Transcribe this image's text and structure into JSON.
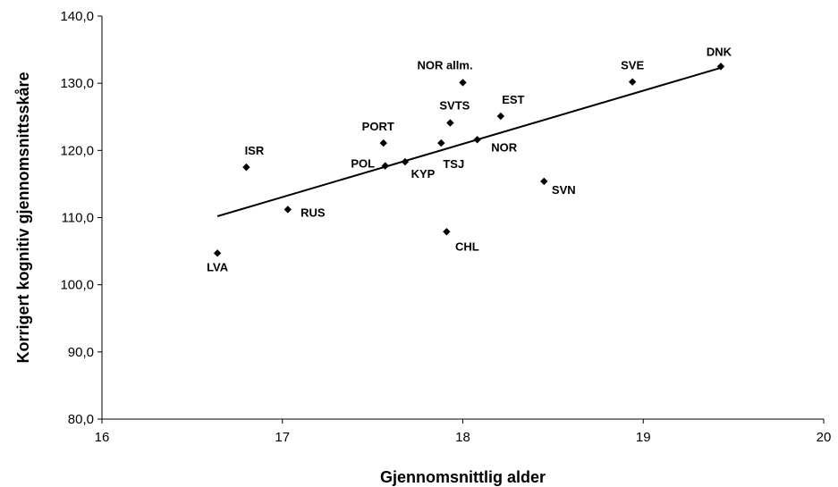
{
  "chart_data": {
    "type": "scatter",
    "title": "",
    "xlabel": "Gjennomsnittlig alder",
    "ylabel": "Korrigert kognitiv gjennomsnittsskåre",
    "xlim": [
      16,
      20
    ],
    "ylim": [
      80,
      140
    ],
    "x_ticks": [
      "16",
      "17",
      "18",
      "19",
      "20"
    ],
    "y_ticks": [
      "80,0",
      "90,0",
      "100,0",
      "110,0",
      "120,0",
      "130,0",
      "140,0"
    ],
    "grid": false,
    "legend": "none",
    "marker_color": "#000000",
    "points": [
      {
        "label": "LVA",
        "x": 16.64,
        "y": 104.7
      },
      {
        "label": "ISR",
        "x": 16.8,
        "y": 117.5
      },
      {
        "label": "RUS",
        "x": 17.03,
        "y": 111.2
      },
      {
        "label": "PORT",
        "x": 17.56,
        "y": 121.1
      },
      {
        "label": "POL",
        "x": 17.57,
        "y": 117.7
      },
      {
        "label": "KYP",
        "x": 17.68,
        "y": 118.3
      },
      {
        "label": "TSJ",
        "x": 17.88,
        "y": 121.1
      },
      {
        "label": "SVTS",
        "x": 17.93,
        "y": 124.1
      },
      {
        "label": "CHL",
        "x": 17.91,
        "y": 107.9
      },
      {
        "label": "NOR allm.",
        "x": 18.0,
        "y": 130.1
      },
      {
        "label": "NOR",
        "x": 18.08,
        "y": 121.6
      },
      {
        "label": "EST",
        "x": 18.21,
        "y": 125.1
      },
      {
        "label": "SVN",
        "x": 18.45,
        "y": 115.4
      },
      {
        "label": "SVE",
        "x": 18.94,
        "y": 130.2
      },
      {
        "label": "DNK",
        "x": 19.43,
        "y": 132.5
      }
    ],
    "trendline": {
      "x": [
        16.64,
        19.43
      ],
      "y": [
        110.2,
        132.3
      ]
    }
  }
}
